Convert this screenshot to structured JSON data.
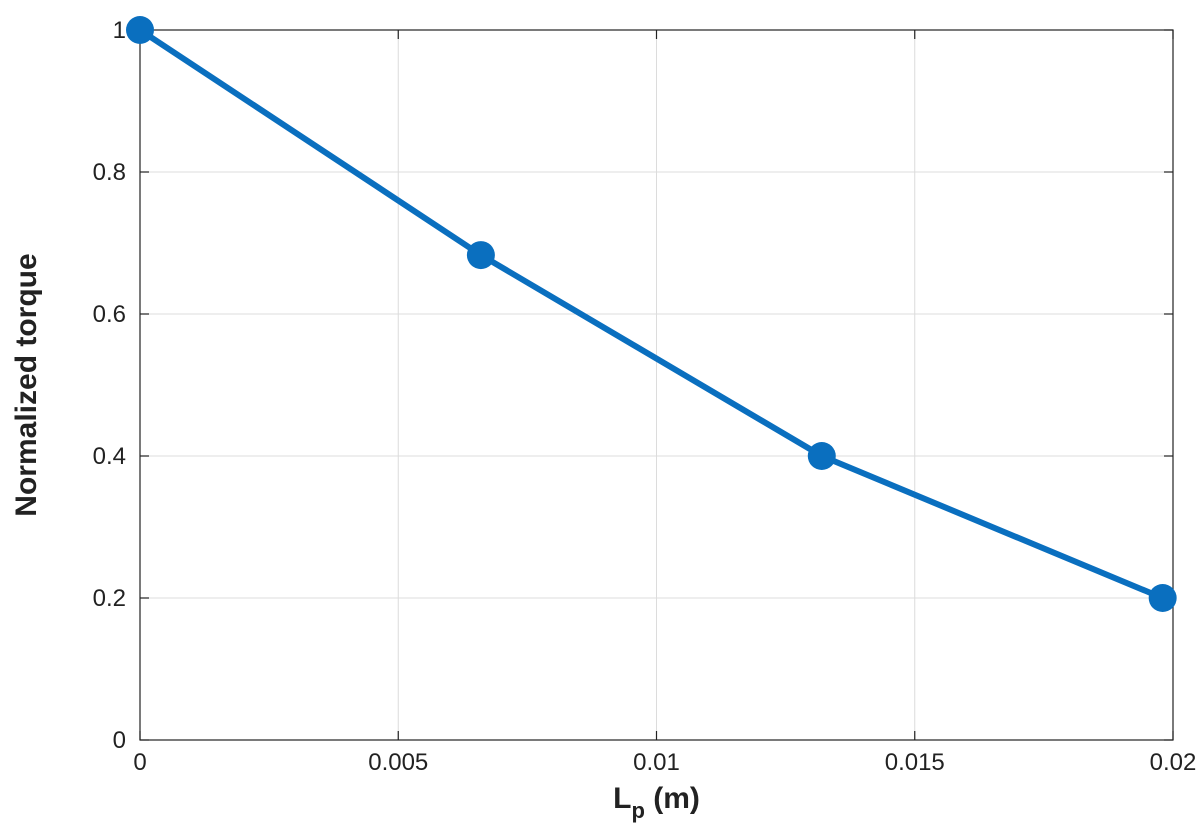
{
  "chart_data": {
    "type": "line",
    "title": "",
    "xlabel": "L",
    "xlabel_subscript": "p",
    "xlabel_suffix": " (m)",
    "ylabel": "Normalized torque",
    "xlim": [
      0,
      0.02
    ],
    "ylim": [
      0,
      1
    ],
    "xticks": [
      0,
      0.005,
      0.01,
      0.015,
      0.02
    ],
    "xtick_labels": [
      "0",
      "0.005",
      "0.01",
      "0.015",
      "0.02"
    ],
    "yticks": [
      0,
      0.2,
      0.4,
      0.6,
      0.8,
      1
    ],
    "ytick_labels": [
      "0",
      "0.2",
      "0.4",
      "0.6",
      "0.8",
      "1"
    ],
    "grid": true,
    "series": [
      {
        "color": "#0a6fbf",
        "marker": "circle",
        "x": [
          0,
          0.0066,
          0.0132,
          0.0198
        ],
        "y": [
          1.0,
          0.683,
          0.4,
          0.2
        ]
      }
    ]
  }
}
